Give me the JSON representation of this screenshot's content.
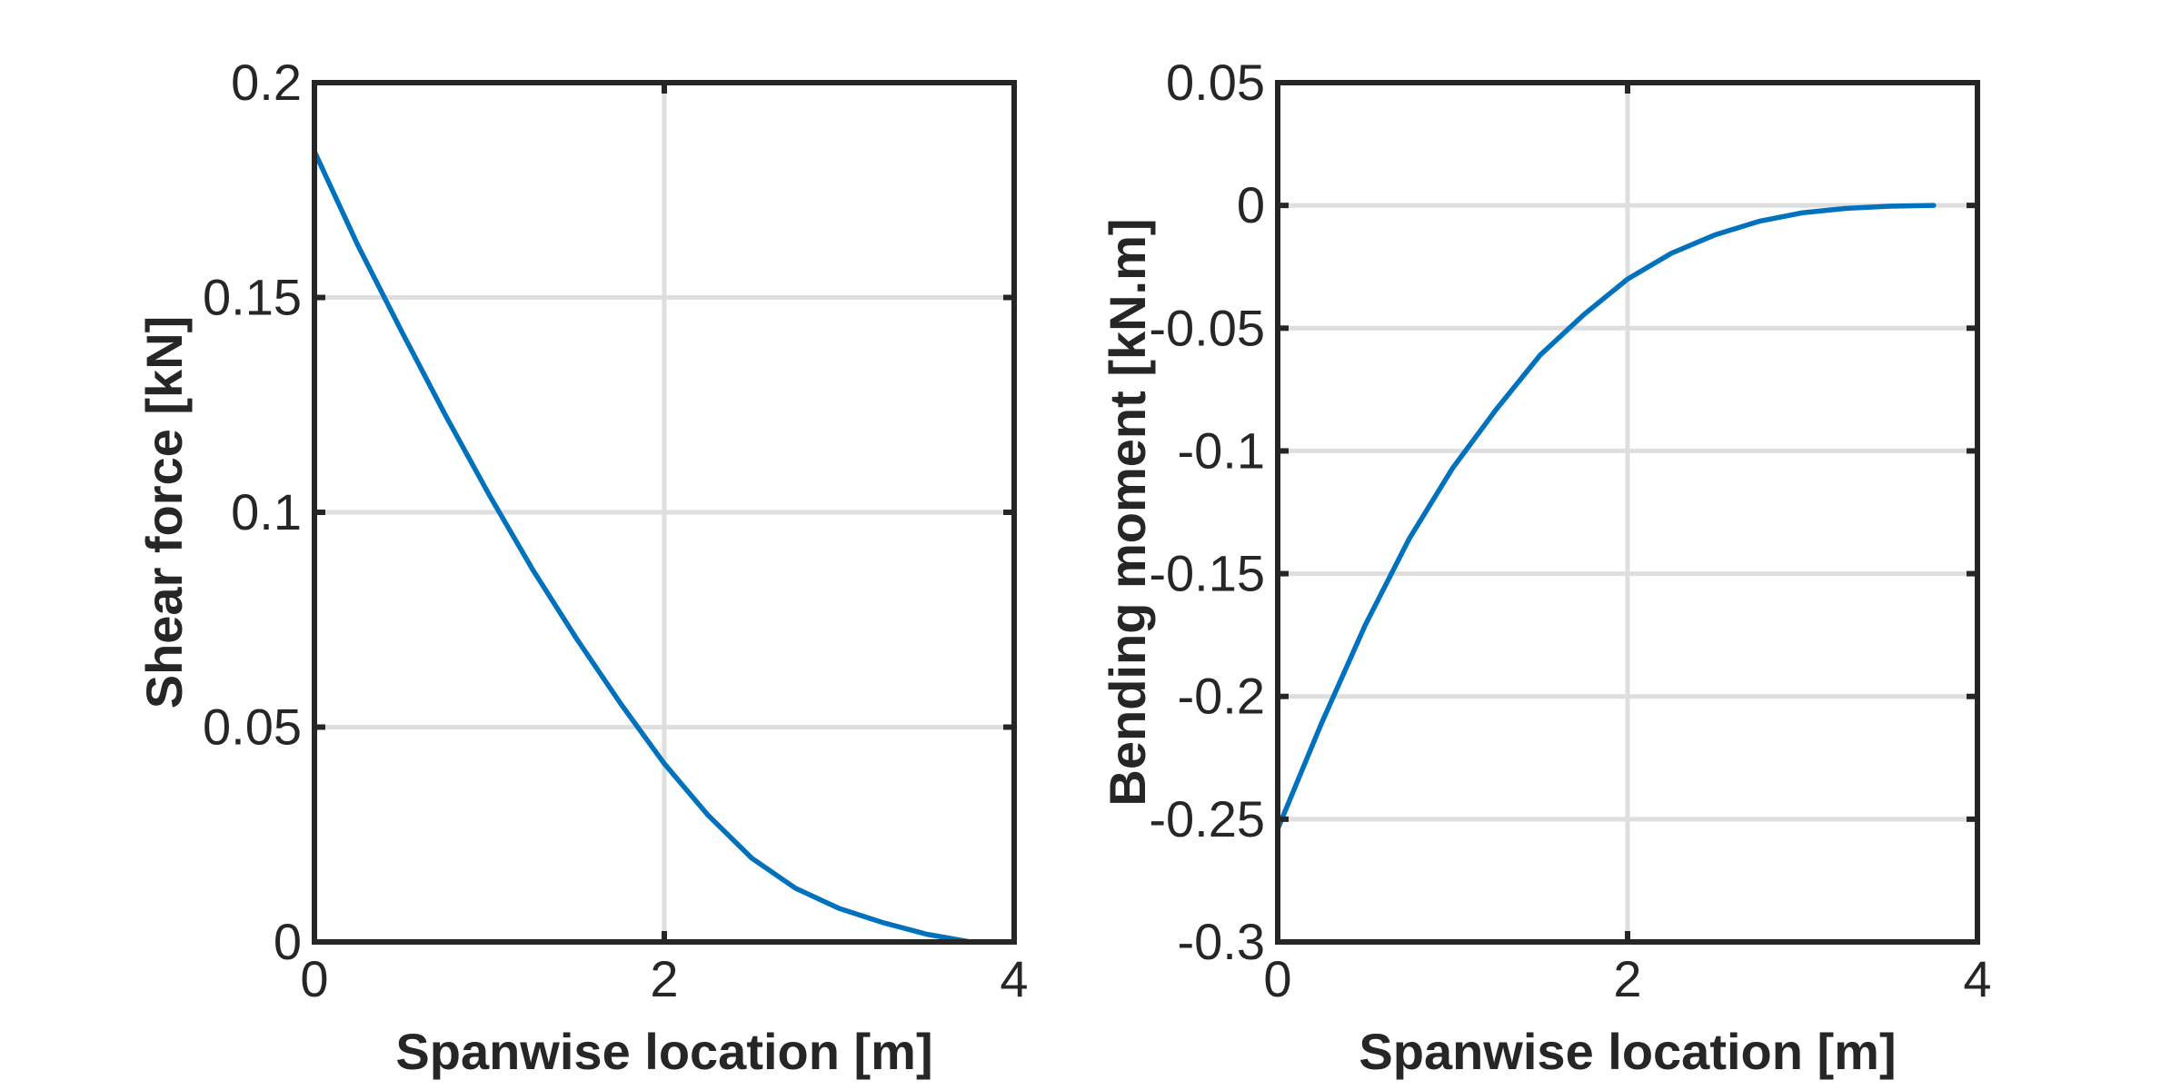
{
  "chart_data": [
    {
      "type": "line",
      "xlabel": "Spanwise location [m]",
      "ylabel": "Shear force [kN]",
      "xlim": [
        0,
        4
      ],
      "ylim": [
        0,
        0.2
      ],
      "xticks": [
        0,
        2,
        4
      ],
      "xtick_labels": [
        "0",
        "2",
        "4"
      ],
      "yticks": [
        0,
        0.05,
        0.1,
        0.15,
        0.2
      ],
      "ytick_labels": [
        "0",
        "0.05",
        "0.1",
        "0.15",
        "0.2"
      ],
      "grid": true,
      "series": [
        {
          "color": "#0072BD",
          "x": [
            0,
            0,
            0.25,
            0.5,
            0.75,
            1.0,
            1.25,
            1.5,
            1.75,
            2.0,
            2.25,
            2.5,
            2.75,
            3.0,
            3.25,
            3.5,
            3.75
          ],
          "y": [
            0,
            0.184,
            0.162,
            0.142,
            0.1225,
            0.104,
            0.0865,
            0.0705,
            0.0555,
            0.0415,
            0.0295,
            0.0195,
            0.0125,
            0.0078,
            0.0045,
            0.0018,
            0
          ]
        }
      ]
    },
    {
      "type": "line",
      "xlabel": "Spanwise location [m]",
      "ylabel": "Bending moment [kN.m]",
      "xlim": [
        0,
        4
      ],
      "ylim": [
        -0.3,
        0.05
      ],
      "xticks": [
        0,
        2,
        4
      ],
      "xtick_labels": [
        "0",
        "2",
        "4"
      ],
      "yticks": [
        -0.3,
        -0.25,
        -0.2,
        -0.15,
        -0.1,
        -0.05,
        0,
        0.05
      ],
      "ytick_labels": [
        "-0.3",
        "-0.25",
        "-0.2",
        "-0.15",
        "-0.1",
        "-0.05",
        "0",
        "0.05"
      ],
      "grid": true,
      "series": [
        {
          "color": "#0072BD",
          "x": [
            0,
            0,
            0.25,
            0.5,
            0.75,
            1.0,
            1.25,
            1.5,
            1.75,
            2.0,
            2.25,
            2.5,
            2.75,
            3.0,
            3.25,
            3.5,
            3.75
          ],
          "y": [
            0,
            -0.254,
            -0.211,
            -0.171,
            -0.136,
            -0.107,
            -0.083,
            -0.061,
            -0.0445,
            -0.03,
            -0.0195,
            -0.012,
            -0.0065,
            -0.003,
            -0.0012,
            -0.0003,
            0
          ]
        }
      ]
    }
  ]
}
